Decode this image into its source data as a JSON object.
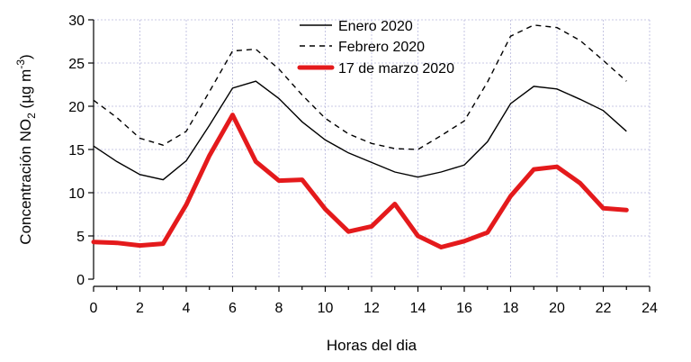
{
  "chart_data": {
    "type": "line",
    "xlabel": "Horas del dia",
    "ylabel": {
      "prefix": "Concentración NO",
      "subscript": "2",
      "units_open": " (µg m",
      "superscript": "-3",
      "units_close": ")"
    },
    "xlim": [
      0,
      24
    ],
    "ylim": [
      0,
      30
    ],
    "xticks": [
      0,
      2,
      4,
      6,
      8,
      10,
      12,
      14,
      16,
      18,
      20,
      22,
      24
    ],
    "yticks": [
      0,
      5,
      10,
      15,
      20,
      25,
      30
    ],
    "grid": true,
    "legend_position": "top-center",
    "x": [
      0,
      1,
      2,
      3,
      4,
      5,
      6,
      7,
      8,
      9,
      10,
      11,
      12,
      13,
      14,
      15,
      16,
      17,
      18,
      19,
      20,
      21,
      22,
      23
    ],
    "series": [
      {
        "name": "Enero 2020",
        "style": "solid",
        "color": "#000000",
        "values": [
          15.4,
          13.6,
          12.1,
          11.5,
          13.7,
          17.8,
          22.1,
          22.9,
          20.9,
          18.2,
          16.1,
          14.6,
          13.5,
          12.4,
          11.8,
          12.4,
          13.2,
          15.9,
          20.3,
          22.3,
          22.0,
          20.8,
          19.5,
          17.1
        ]
      },
      {
        "name": "Febrero 2020",
        "style": "dashed",
        "color": "#000000",
        "values": [
          20.7,
          18.7,
          16.3,
          15.5,
          17.1,
          21.7,
          26.4,
          26.6,
          24.3,
          21.3,
          18.6,
          16.8,
          15.7,
          15.1,
          15.0,
          16.6,
          18.3,
          22.8,
          28.1,
          29.4,
          29.1,
          27.6,
          25.3,
          22.9
        ]
      },
      {
        "name": "17 de marzo 2020",
        "style": "thick",
        "color": "#e41a1c",
        "values": [
          4.3,
          4.2,
          3.9,
          4.1,
          8.6,
          14.3,
          19.0,
          13.6,
          11.4,
          11.5,
          8.1,
          5.5,
          6.1,
          8.7,
          5.0,
          3.7,
          4.4,
          5.4,
          9.6,
          12.7,
          13.0,
          11.1,
          8.2,
          8.0
        ]
      }
    ]
  }
}
